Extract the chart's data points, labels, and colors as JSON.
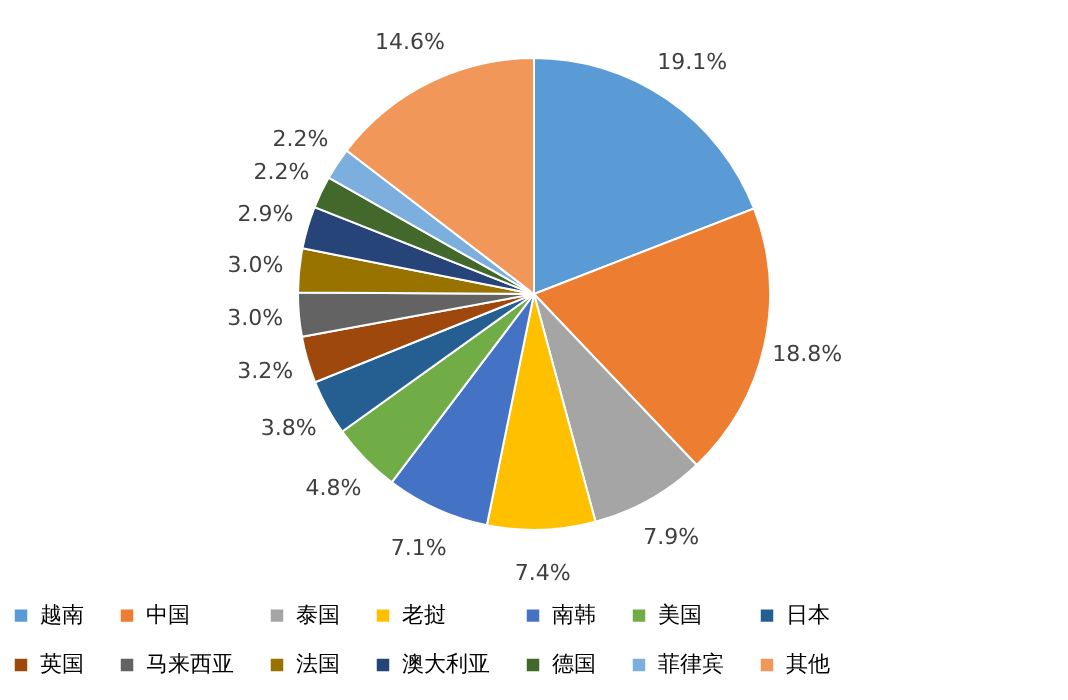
{
  "chart_data": {
    "type": "pie",
    "categories": [
      "越南",
      "中国",
      "泰国",
      "老挝",
      "南韩",
      "美国",
      "日本",
      "英国",
      "马来西亚",
      "法国",
      "澳大利亚",
      "德国",
      "菲律宾",
      "其他"
    ],
    "values": [
      19.1,
      18.8,
      7.9,
      7.4,
      7.1,
      4.8,
      3.8,
      3.2,
      3.0,
      3.0,
      2.9,
      2.2,
      2.2,
      14.6
    ],
    "value_labels": [
      "19.1%",
      "18.8%",
      "7.9%",
      "7.4%",
      "7.1%",
      "4.8%",
      "3.8%",
      "3.2%",
      "3.0%",
      "3.0%",
      "2.9%",
      "2.2%",
      "2.2%",
      "14.6%"
    ],
    "colors": [
      "#5b9bd5",
      "#ed7d31",
      "#a5a5a5",
      "#ffc000",
      "#4472c4",
      "#70ad47",
      "#255e91",
      "#9e480e",
      "#636363",
      "#997300",
      "#264478",
      "#43682b",
      "#7cafdd",
      "#f1975a"
    ],
    "legend": "bottom"
  }
}
